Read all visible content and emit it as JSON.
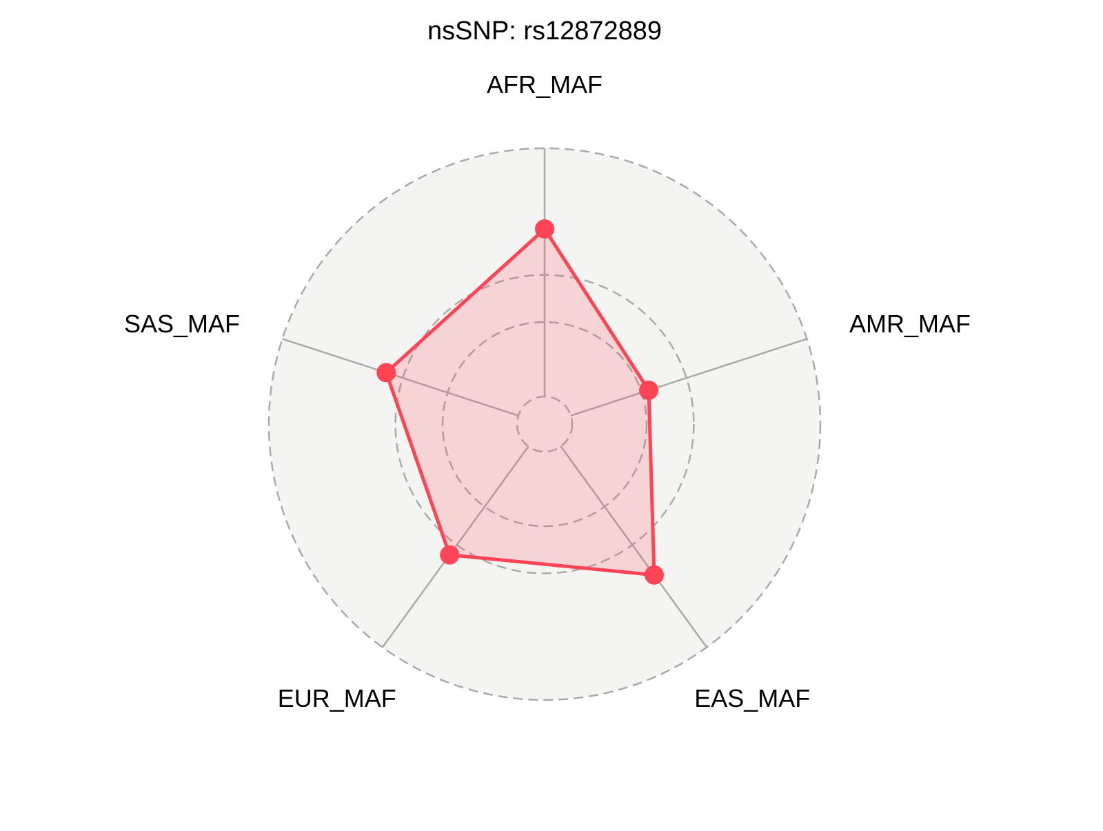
{
  "chart_data": {
    "type": "radar",
    "title": "nsSNP: rs12872889",
    "axes": [
      "AFR_MAF",
      "AMR_MAF",
      "EAS_MAF",
      "EUR_MAF",
      "SAS_MAF"
    ],
    "series": [
      {
        "values": [
          0.675,
          0.33,
          0.64,
          0.54,
          0.56
        ]
      }
    ],
    "range": [
      0,
      1
    ],
    "gridlines": [
      0,
      0.3,
      0.49,
      1
    ],
    "grid": true,
    "colors": {
      "series": "#FF4455",
      "fill": "#F4C9CC",
      "background": "#F4F4F2",
      "grid": "#AAAAAA"
    }
  }
}
